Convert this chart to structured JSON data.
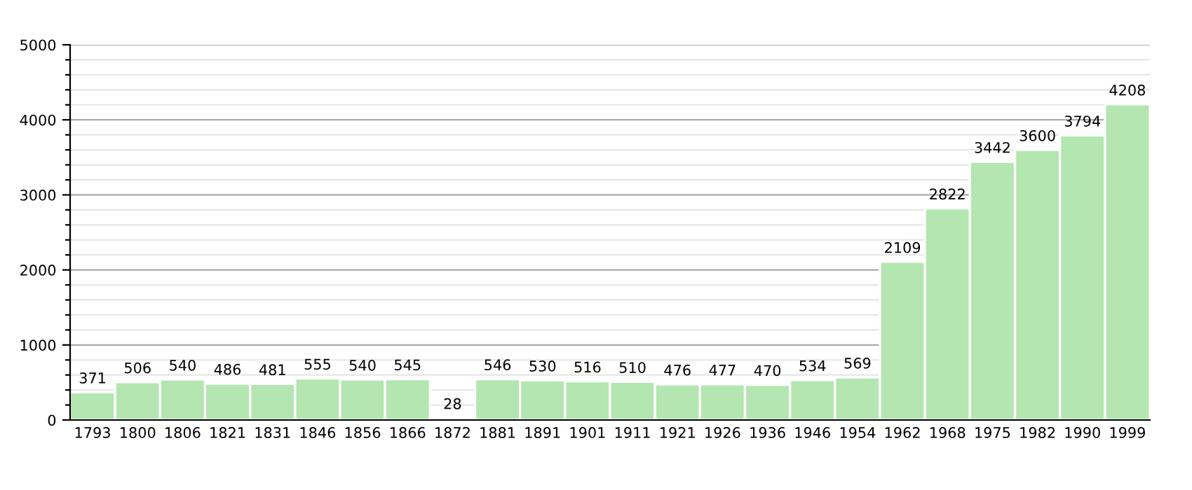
{
  "chart_data": {
    "type": "bar",
    "categories": [
      "1793",
      "1800",
      "1806",
      "1821",
      "1831",
      "1846",
      "1856",
      "1866",
      "1872",
      "1881",
      "1891",
      "1901",
      "1911",
      "1921",
      "1926",
      "1936",
      "1946",
      "1954",
      "1962",
      "1968",
      "1975",
      "1982",
      "1990",
      "1999"
    ],
    "values": [
      371,
      506,
      540,
      486,
      481,
      555,
      540,
      545,
      28,
      546,
      530,
      516,
      510,
      476,
      477,
      470,
      534,
      569,
      2109,
      2822,
      3442,
      3600,
      3794,
      4208
    ],
    "color": "#b3e6b0",
    "data_labels": true,
    "ylim": [
      0,
      5000
    ],
    "yticks": [
      0,
      {
        "value": 200,
        "label": null
      },
      {
        "value": 400,
        "label": null
      },
      {
        "value": 600,
        "label": null
      },
      {
        "value": 800,
        "label": null
      },
      1000,
      {
        "value": 1200,
        "label": null
      },
      {
        "value": 1400,
        "label": null
      },
      {
        "value": 1600,
        "label": null
      },
      {
        "value": 1800,
        "label": null
      },
      2000,
      {
        "value": 2200,
        "label": null
      },
      {
        "value": 2400,
        "label": null
      },
      {
        "value": 2600,
        "label": null
      },
      {
        "value": 2800,
        "label": null
      },
      3000,
      {
        "value": 3200,
        "label": null
      },
      {
        "value": 3400,
        "label": null
      },
      {
        "value": 3600,
        "label": null
      },
      {
        "value": 3800,
        "label": null
      },
      4000,
      {
        "value": 4200,
        "label": null
      },
      {
        "value": 4400,
        "label": null
      },
      {
        "value": 4600,
        "label": null
      },
      {
        "value": 4800,
        "label": null
      },
      5000
    ],
    "grid": "y"
  }
}
